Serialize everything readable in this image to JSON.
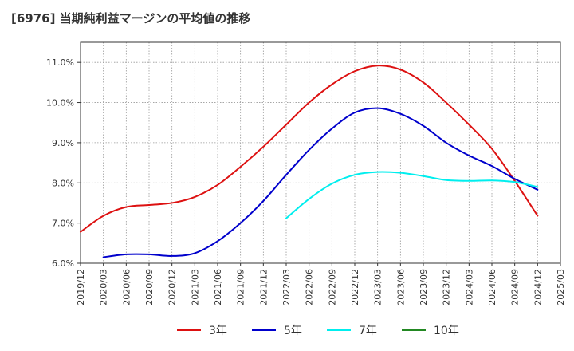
{
  "chart_data": {
    "type": "line",
    "title": "[6976]  当期純利益マージンの平均値の推移",
    "xlabel": "",
    "ylabel": "",
    "ylim": [
      6.0,
      11.5
    ],
    "y_ticks": [
      6.0,
      7.0,
      8.0,
      9.0,
      10.0,
      11.0
    ],
    "y_tick_labels": [
      "6.0%",
      "7.0%",
      "8.0%",
      "9.0%",
      "10.0%",
      "11.0%"
    ],
    "x_tick_labels": [
      "2019/12",
      "2020/03",
      "2020/06",
      "2020/09",
      "2020/12",
      "2021/03",
      "2021/06",
      "2021/09",
      "2021/12",
      "2022/03",
      "2022/06",
      "2022/09",
      "2022/12",
      "2023/03",
      "2023/06",
      "2023/09",
      "2023/12",
      "2024/03",
      "2024/06",
      "2024/09",
      "2024/12",
      "2025/03"
    ],
    "grid": true,
    "legend_position": "bottom",
    "series": [
      {
        "name": "3年",
        "color": "#dd1111",
        "x": [
          "2019/12",
          "2020/03",
          "2020/06",
          "2020/09",
          "2020/12",
          "2021/03",
          "2021/06",
          "2021/09",
          "2021/12",
          "2022/03",
          "2022/06",
          "2022/09",
          "2022/12",
          "2023/03",
          "2023/06",
          "2023/09",
          "2023/12",
          "2024/03",
          "2024/06",
          "2024/09",
          "2024/12"
        ],
        "values": [
          6.78,
          7.18,
          7.4,
          7.45,
          7.5,
          7.65,
          7.95,
          8.4,
          8.9,
          9.45,
          10.0,
          10.45,
          10.78,
          10.92,
          10.82,
          10.5,
          10.0,
          9.45,
          8.85,
          8.05,
          7.18
        ]
      },
      {
        "name": "5年",
        "color": "#0000cc",
        "x": [
          "2020/03",
          "2020/06",
          "2020/09",
          "2020/12",
          "2021/03",
          "2021/06",
          "2021/09",
          "2021/12",
          "2022/03",
          "2022/06",
          "2022/09",
          "2022/12",
          "2023/03",
          "2023/06",
          "2023/09",
          "2023/12",
          "2024/03",
          "2024/06",
          "2024/09",
          "2024/12"
        ],
        "values": [
          6.15,
          6.22,
          6.22,
          6.18,
          6.25,
          6.55,
          7.0,
          7.55,
          8.2,
          8.82,
          9.35,
          9.75,
          9.86,
          9.72,
          9.42,
          9.0,
          8.68,
          8.42,
          8.1,
          7.83
        ]
      },
      {
        "name": "7年",
        "color": "#00eeee",
        "x": [
          "2022/03",
          "2022/06",
          "2022/09",
          "2022/12",
          "2023/03",
          "2023/06",
          "2023/09",
          "2023/12",
          "2024/03",
          "2024/06",
          "2024/09",
          "2024/12"
        ],
        "values": [
          7.12,
          7.6,
          7.98,
          8.2,
          8.27,
          8.25,
          8.17,
          8.07,
          8.05,
          8.06,
          8.02,
          7.9
        ]
      },
      {
        "name": "10年",
        "color": "#228822",
        "x": [],
        "values": []
      }
    ]
  }
}
